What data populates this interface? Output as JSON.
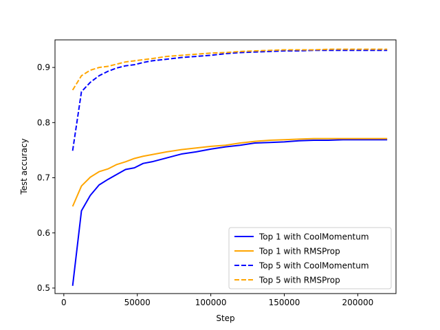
{
  "chart_data": {
    "type": "line",
    "title": "",
    "xlabel": "Step",
    "ylabel": "Test accuracy",
    "xlim": [
      -6000,
      226000
    ],
    "ylim": [
      0.49,
      0.95
    ],
    "xticks": [
      0,
      50000,
      100000,
      150000,
      200000
    ],
    "yticks": [
      0.5,
      0.6,
      0.7,
      0.8,
      0.9
    ],
    "grid": false,
    "legend_position": "lower-right",
    "series": [
      {
        "name": "Top 1 with CoolMomentum",
        "color": "#0000ff",
        "dash": "solid",
        "x": [
          6000,
          12000,
          18000,
          24000,
          30000,
          36000,
          42000,
          48000,
          54000,
          60000,
          70000,
          80000,
          90000,
          100000,
          110000,
          120000,
          130000,
          140000,
          150000,
          160000,
          170000,
          180000,
          190000,
          200000,
          210000,
          220000
        ],
        "y": [
          0.504,
          0.64,
          0.668,
          0.687,
          0.697,
          0.706,
          0.715,
          0.718,
          0.726,
          0.729,
          0.736,
          0.743,
          0.747,
          0.752,
          0.756,
          0.759,
          0.763,
          0.764,
          0.765,
          0.767,
          0.768,
          0.768,
          0.769,
          0.769,
          0.769,
          0.769
        ]
      },
      {
        "name": "Top 1 with RMSProp",
        "color": "#ffa500",
        "dash": "solid",
        "x": [
          6000,
          12000,
          18000,
          24000,
          30000,
          36000,
          42000,
          48000,
          54000,
          60000,
          70000,
          80000,
          90000,
          100000,
          110000,
          120000,
          130000,
          140000,
          150000,
          160000,
          170000,
          180000,
          190000,
          200000,
          210000,
          220000
        ],
        "y": [
          0.648,
          0.685,
          0.701,
          0.711,
          0.716,
          0.724,
          0.729,
          0.735,
          0.739,
          0.742,
          0.747,
          0.751,
          0.754,
          0.757,
          0.759,
          0.763,
          0.766,
          0.768,
          0.769,
          0.77,
          0.771,
          0.771,
          0.771,
          0.771,
          0.771,
          0.771
        ]
      },
      {
        "name": "Top 5 with CoolMomentum",
        "color": "#0000ff",
        "dash": "dashed",
        "x": [
          6000,
          12000,
          18000,
          24000,
          30000,
          36000,
          42000,
          48000,
          54000,
          60000,
          70000,
          80000,
          90000,
          100000,
          110000,
          120000,
          130000,
          140000,
          150000,
          160000,
          170000,
          180000,
          190000,
          200000,
          210000,
          220000
        ],
        "y": [
          0.749,
          0.856,
          0.873,
          0.885,
          0.893,
          0.899,
          0.903,
          0.905,
          0.909,
          0.912,
          0.915,
          0.918,
          0.92,
          0.922,
          0.925,
          0.927,
          0.928,
          0.929,
          0.93,
          0.93,
          0.931,
          0.931,
          0.931,
          0.931,
          0.931,
          0.931
        ]
      },
      {
        "name": "Top 5 with RMSProp",
        "color": "#ffa500",
        "dash": "dashed",
        "x": [
          6000,
          12000,
          18000,
          24000,
          30000,
          36000,
          42000,
          48000,
          54000,
          60000,
          70000,
          80000,
          90000,
          100000,
          110000,
          120000,
          130000,
          140000,
          150000,
          160000,
          170000,
          180000,
          190000,
          200000,
          210000,
          220000
        ],
        "y": [
          0.859,
          0.885,
          0.895,
          0.9,
          0.902,
          0.906,
          0.91,
          0.912,
          0.914,
          0.916,
          0.92,
          0.922,
          0.924,
          0.926,
          0.927,
          0.929,
          0.93,
          0.931,
          0.932,
          0.932,
          0.932,
          0.933,
          0.933,
          0.933,
          0.933,
          0.933
        ]
      }
    ]
  }
}
